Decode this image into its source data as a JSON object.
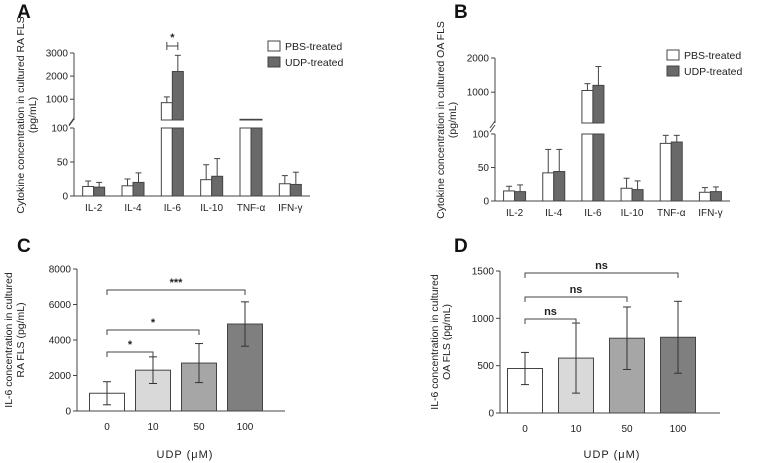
{
  "chart_data": [
    {
      "panel": "A",
      "type": "bar",
      "ylabel": "Cytokine concentration in cultured RA FLS (pg/mL)",
      "categories": [
        "IL-2",
        "IL-4",
        "IL-6",
        "IL-10",
        "TNF-α",
        "IFN-γ"
      ],
      "series": [
        {
          "name": "PBS-treated",
          "color": "#ffffff",
          "values": [
            14,
            15,
            850,
            24,
            130,
            18
          ],
          "errors": [
            8,
            10,
            250,
            22,
            0,
            12
          ]
        },
        {
          "name": "UDP-treated",
          "color": "#696969",
          "values": [
            13,
            20,
            2200,
            29,
            130,
            17
          ],
          "errors": [
            7,
            14,
            700,
            26,
            0,
            18
          ]
        }
      ],
      "broken_axis": {
        "lower_range": [
          0,
          100
        ],
        "upper_range": [
          100,
          3000
        ],
        "lower_ticks": [
          0,
          50,
          100
        ],
        "upper_ticks": [
          1000,
          2000,
          3000
        ],
        "break_value": 100
      },
      "significance": [
        {
          "category": "IL-6",
          "label": "*"
        }
      ]
    },
    {
      "panel": "B",
      "type": "bar",
      "ylabel": "Cytokine concentration in cultured OA FLS (pg/mL)",
      "categories": [
        "IL-2",
        "IL-4",
        "IL-6",
        "IL-10",
        "TNF-α",
        "IFN-γ"
      ],
      "series": [
        {
          "name": "PBS-treated",
          "color": "#ffffff",
          "values": [
            15,
            42,
            1050,
            19,
            86,
            13
          ],
          "errors": [
            7,
            35,
            200,
            15,
            12,
            7
          ]
        },
        {
          "name": "UDP-treated",
          "color": "#696969",
          "values": [
            14,
            44,
            1200,
            17,
            88,
            14
          ],
          "errors": [
            10,
            33,
            550,
            13,
            10,
            7
          ]
        }
      ],
      "broken_axis": {
        "lower_range": [
          0,
          100
        ],
        "upper_range": [
          100,
          2000
        ],
        "lower_ticks": [
          0,
          50,
          100
        ],
        "upper_ticks": [
          1000,
          2000
        ],
        "break_value": 100
      }
    },
    {
      "panel": "C",
      "type": "bar",
      "ylabel": "IL-6 concentration in cultured RA FLS (pg/mL)",
      "xlabel": "UDP (μM)",
      "categories": [
        "0",
        "10",
        "50",
        "100"
      ],
      "values": [
        1000,
        2300,
        2700,
        4900
      ],
      "errors": [
        650,
        750,
        1100,
        1250
      ],
      "colors": [
        "#ffffff",
        "#d9d9d9",
        "#a6a6a6",
        "#7f7f7f"
      ],
      "ylim": [
        0,
        8000
      ],
      "yticks": [
        0,
        2000,
        4000,
        6000,
        8000
      ],
      "significance": [
        {
          "from": "0",
          "to": "10",
          "label": "*"
        },
        {
          "from": "0",
          "to": "50",
          "label": "*"
        },
        {
          "from": "0",
          "to": "100",
          "label": "***"
        }
      ]
    },
    {
      "panel": "D",
      "type": "bar",
      "ylabel": "IL-6 concentration in cultured OA FLS (pg/mL)",
      "xlabel": "UDP (μM)",
      "categories": [
        "0",
        "10",
        "50",
        "100"
      ],
      "values": [
        470,
        580,
        790,
        800
      ],
      "errors": [
        170,
        370,
        330,
        380
      ],
      "colors": [
        "#ffffff",
        "#d9d9d9",
        "#a6a6a6",
        "#7f7f7f"
      ],
      "ylim": [
        0,
        1500
      ],
      "yticks": [
        0,
        500,
        1000,
        1500
      ],
      "significance": [
        {
          "from": "0",
          "to": "10",
          "label": "ns"
        },
        {
          "from": "0",
          "to": "50",
          "label": "ns"
        },
        {
          "from": "0",
          "to": "100",
          "label": "ns"
        }
      ]
    }
  ]
}
